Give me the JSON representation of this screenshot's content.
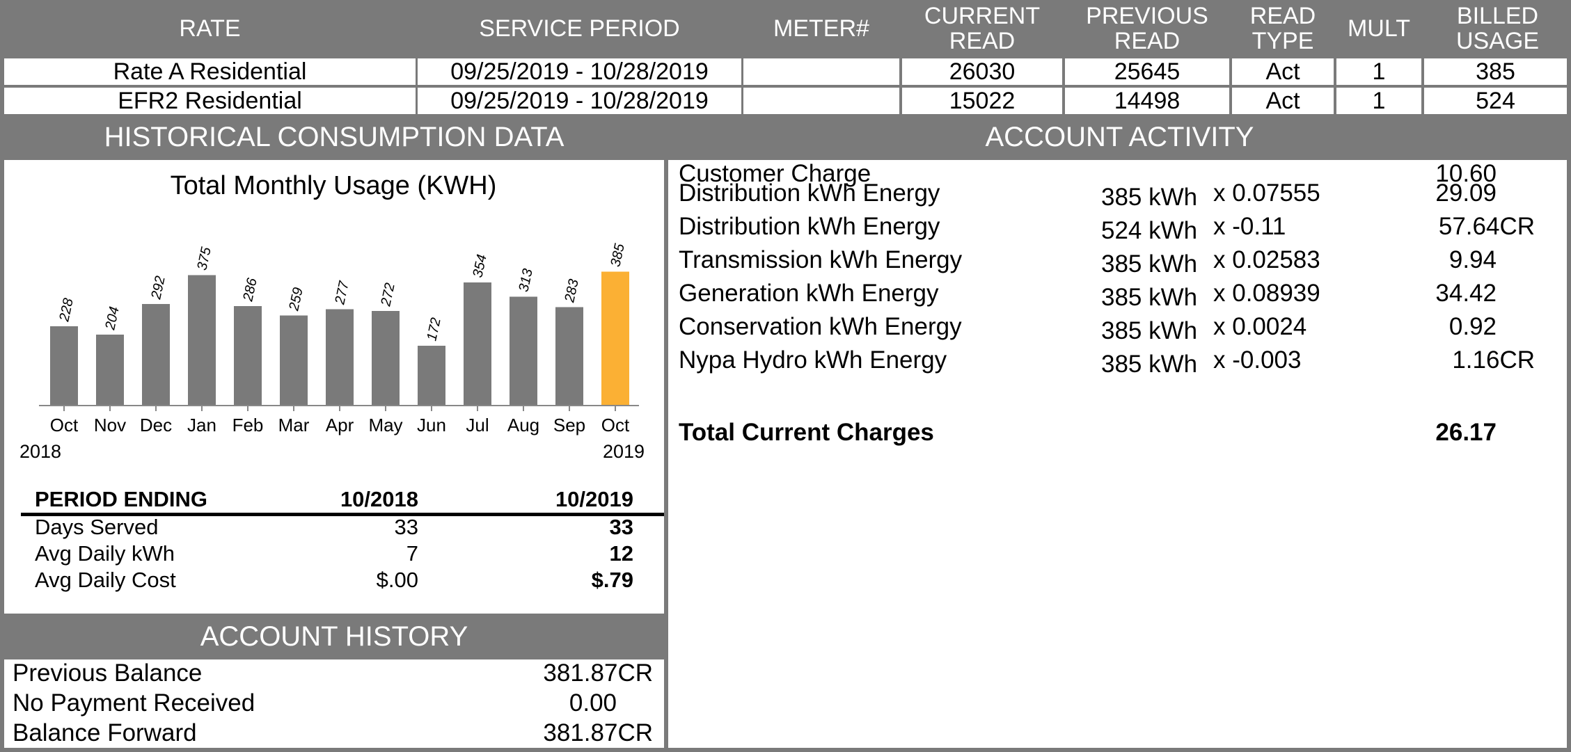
{
  "usage_table": {
    "headers": {
      "rate": "RATE",
      "service_period": "SERVICE PERIOD",
      "meter": "METER#",
      "current_read": [
        "CURRENT",
        "READ"
      ],
      "previous_read": [
        "PREVIOUS",
        "READ"
      ],
      "read_type": [
        "READ",
        "TYPE"
      ],
      "mult": "MULT",
      "billed_usage": [
        "BILLED",
        "USAGE"
      ]
    },
    "rows": [
      {
        "rate": "Rate A Residential",
        "service_period": "09/25/2019 - 10/28/2019",
        "meter": "",
        "current_read": "26030",
        "previous_read": "25645",
        "read_type": "Act",
        "mult": "1",
        "billed_usage": "385"
      },
      {
        "rate": "EFR2 Residential",
        "service_period": "09/25/2019 - 10/28/2019",
        "meter": "",
        "current_read": "15022",
        "previous_read": "14498",
        "read_type": "Act",
        "mult": "1",
        "billed_usage": "524"
      }
    ]
  },
  "historical": {
    "heading": "HISTORICAL CONSUMPTION DATA",
    "start_year": "2018",
    "end_year": "2019",
    "period_table": {
      "headers": [
        "PERIOD ENDING",
        "10/2018",
        "10/2019"
      ],
      "rows": [
        [
          "Days Served",
          "33",
          "33"
        ],
        [
          "Avg Daily kWh",
          "7",
          "12"
        ],
        [
          "Avg Daily Cost",
          "$.00",
          "$.79"
        ]
      ]
    }
  },
  "chart_data": {
    "type": "bar",
    "title": "Total Monthly Usage (KWH)",
    "categories": [
      "Oct",
      "Nov",
      "Dec",
      "Jan",
      "Feb",
      "Mar",
      "Apr",
      "May",
      "Jun",
      "Jul",
      "Aug",
      "Sep",
      "Oct"
    ],
    "values": [
      228,
      204,
      292,
      375,
      286,
      259,
      277,
      272,
      172,
      354,
      313,
      283,
      385
    ],
    "highlight_index": 12,
    "colors": {
      "bar": "#7a7a7a",
      "highlight": "#fbb034"
    },
    "xlabel": "",
    "ylabel": "",
    "grid": false
  },
  "account_activity": {
    "heading": "ACCOUNT ACTIVITY",
    "items": [
      {
        "label": "Customer Charge",
        "usage": "",
        "rate": "",
        "amount": "10.60"
      },
      {
        "label": "Distribution kWh Energy",
        "usage": "385 kWh",
        "rate": "x 0.07555",
        "amount": "29.09"
      },
      {
        "label": "Distribution kWh Energy",
        "usage": "524 kWh",
        "rate": "x -0.11",
        "amount": "57.64CR"
      },
      {
        "label": "Transmission kWh Energy",
        "usage": "385 kWh",
        "rate": "x 0.02583",
        "amount": "9.94"
      },
      {
        "label": "Generation kWh Energy",
        "usage": "385 kWh",
        "rate": "x 0.08939",
        "amount": "34.42"
      },
      {
        "label": "Conservation kWh Energy",
        "usage": "385 kWh",
        "rate": "x 0.0024",
        "amount": "0.92"
      },
      {
        "label": "Nypa Hydro kWh Energy",
        "usage": "385 kWh",
        "rate": "x -0.003",
        "amount": "1.16CR"
      }
    ],
    "total_label": "Total Current Charges",
    "total_amount": "26.17"
  },
  "account_history": {
    "heading": "ACCOUNT HISTORY",
    "rows": [
      {
        "label": "Previous Balance",
        "value": "381.87CR"
      },
      {
        "label": "No Payment Received",
        "value": "0.00"
      },
      {
        "label": "Balance Forward",
        "value": "381.87CR"
      }
    ]
  }
}
